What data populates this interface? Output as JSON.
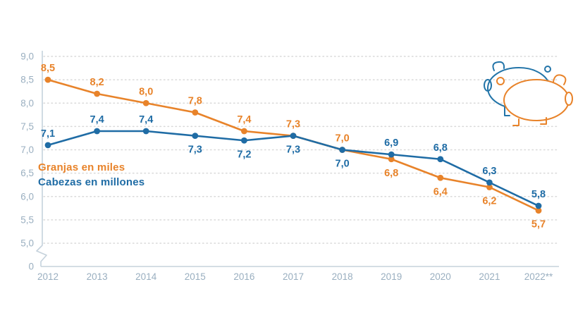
{
  "chart_data": {
    "type": "line",
    "x": [
      "2012",
      "2013",
      "2014",
      "2015",
      "2016",
      "2017",
      "2018",
      "2019",
      "2020",
      "2021",
      "2022**"
    ],
    "series": [
      {
        "name": "Granjas en miles",
        "color": "#E8832A",
        "values": [
          8.5,
          8.2,
          8.0,
          7.8,
          7.4,
          7.3,
          7.0,
          6.8,
          6.4,
          6.2,
          5.7
        ],
        "labels": [
          "8,5",
          "8,2",
          "8,0",
          "7,8",
          "7,4",
          "7,3",
          "7,0",
          "6,8",
          "6,4",
          "6,2",
          "5,7"
        ],
        "label_positions": [
          "above",
          "above",
          "above",
          "above",
          "above",
          "above",
          "above",
          "below",
          "below",
          "below",
          "below"
        ]
      },
      {
        "name": "Cabezas en millones",
        "color": "#1F6CA5",
        "values": [
          7.1,
          7.4,
          7.4,
          7.3,
          7.2,
          7.3,
          7.0,
          6.9,
          6.8,
          6.3,
          5.8
        ],
        "labels": [
          "7,1",
          "7,4",
          "7,4",
          "7,3",
          "7,2",
          "7,3",
          "7,0",
          "6,9",
          "6,8",
          "6,3",
          "5,8"
        ],
        "label_positions": [
          "above",
          "above",
          "above",
          "below",
          "below",
          "below",
          "below",
          "above",
          "above",
          "above",
          "above"
        ]
      }
    ],
    "yticks": {
      "labels": [
        "9,0",
        "8,5",
        "8,0",
        "7,5",
        "7,0",
        "6,5",
        "6,0",
        "5,5",
        "5,0"
      ],
      "values": [
        9.0,
        8.5,
        8.0,
        7.5,
        7.0,
        6.5,
        6.0,
        5.5,
        5.0
      ],
      "zero_label": "0"
    },
    "ylim": [
      5.0,
      9.0
    ],
    "axis_break": true,
    "grid": "dotted-horizontal",
    "legend_position": "inside-left",
    "title": "",
    "xlabel": "",
    "ylabel": "",
    "colors": {
      "axis_text": "#9AAFC0",
      "gridline": "#D9D9D9",
      "axis_line": "#C5D2DC",
      "series_granjas": "#E8832A",
      "series_cabezas": "#1F6CA5"
    }
  }
}
